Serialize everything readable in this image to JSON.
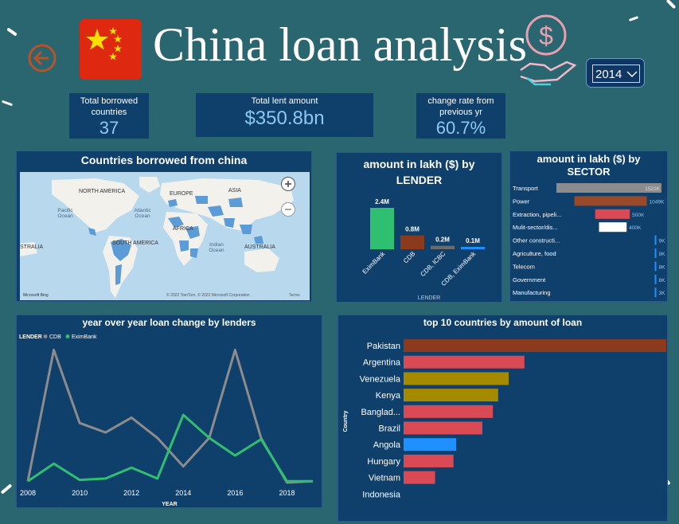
{
  "header": {
    "title": "China loan analysis",
    "year_selected": "2014"
  },
  "kpis": {
    "borrowed": {
      "label": "Total borrowed countries",
      "value": "37"
    },
    "lent": {
      "label": "Total lent amount",
      "value": "$350.8bn"
    },
    "change": {
      "label": "change rate from previous yr",
      "value": "60.7%"
    }
  },
  "map": {
    "title": "Countries borrowed from china",
    "labels": [
      "NORTH AMERICA",
      "EUROPE",
      "ASIA",
      "Pacific Ocean",
      "Atlantic Ocean",
      "AFRICA",
      "SOUTH AMERICA",
      "Indian Ocean",
      "AUSTRALIA",
      "STRALIA"
    ],
    "attribution": "© 2022 TomTom, © 2022 Microsoft Corporation",
    "terms": "Terms",
    "logo": "Microsoft Bing"
  },
  "lender_chart": {
    "title": "amount in lakh ($) by LENDER",
    "xlabel": "LENDER",
    "chart_data": {
      "type": "bar",
      "categories": [
        "EximBank",
        "CDB",
        "CDB, ICBC",
        "CDB, EximBank"
      ],
      "values": [
        2.4,
        0.8,
        0.2,
        0.1
      ],
      "value_labels": [
        "2.4M",
        "0.8M",
        "0.2M",
        "0.1M"
      ],
      "colors": [
        "#2fbf71",
        "#8b3a1e",
        "#6b6b6b",
        "#1e90ff"
      ]
    }
  },
  "sector_chart": {
    "title": "amount in lakh ($) by SECTOR",
    "chart_data": {
      "type": "bar",
      "categories": [
        "Transport",
        "Power",
        "Extraction, pipeli...",
        "Mulit-sector/dis...",
        "Other constructi...",
        "Agriculture, food",
        "Telecom",
        "Government",
        "Manufacturing"
      ],
      "values": [
        1522,
        1049,
        500,
        400,
        9,
        9,
        8,
        8,
        3
      ],
      "value_labels": [
        "1522K",
        "1049K",
        "500K",
        "400K",
        "9K",
        "9K",
        "8K",
        "8K",
        "3K"
      ],
      "colors": [
        "#8c8c8c",
        "#9a4a28",
        "#d94a55",
        "#ffffff",
        "#1e90ff",
        "#1e90ff",
        "#1e90ff",
        "#1e90ff",
        "#1e90ff"
      ]
    }
  },
  "yoy_chart": {
    "title": "year over year loan change by lenders",
    "legend_title": "LENDER",
    "xlabel": "YEAR",
    "chart_data": {
      "type": "line",
      "x": [
        2008,
        2009,
        2010,
        2011,
        2012,
        2013,
        2014,
        2015,
        2016,
        2017,
        2018,
        2019
      ],
      "xticks": [
        "2008",
        "2010",
        "2012",
        "2014",
        "2016",
        "2018"
      ],
      "xlim": [
        2008,
        2019
      ],
      "ylim": [
        0,
        100
      ],
      "series": [
        {
          "name": "CDB",
          "color": "#8c8c8c",
          "values": [
            1,
            98,
            44,
            37,
            48,
            33,
            12,
            33,
            98,
            33,
            0,
            1
          ]
        },
        {
          "name": "EximBank",
          "color": "#2fbf71",
          "values": [
            1,
            14,
            2,
            3,
            11,
            3,
            50,
            33,
            20,
            32,
            1,
            1
          ]
        }
      ]
    }
  },
  "top10_chart": {
    "title": "top 10 countries by amount of loan",
    "ylabel": "Country",
    "chart_data": {
      "type": "bar",
      "categories": [
        "Pakistan",
        "Argentina",
        "Venezuela",
        "Kenya",
        "Banglad...",
        "Brazil",
        "Angola",
        "Hungary",
        "Vietnam",
        "Indonesia"
      ],
      "values": [
        100,
        46,
        40,
        36,
        34,
        30,
        20,
        19,
        12,
        0
      ],
      "colors": [
        "#8b3a1e",
        "#d94a55",
        "#a58a00",
        "#a58a00",
        "#d94a55",
        "#d94a55",
        "#1e90ff",
        "#d94a55",
        "#d94a55",
        "#d94a55"
      ]
    }
  }
}
